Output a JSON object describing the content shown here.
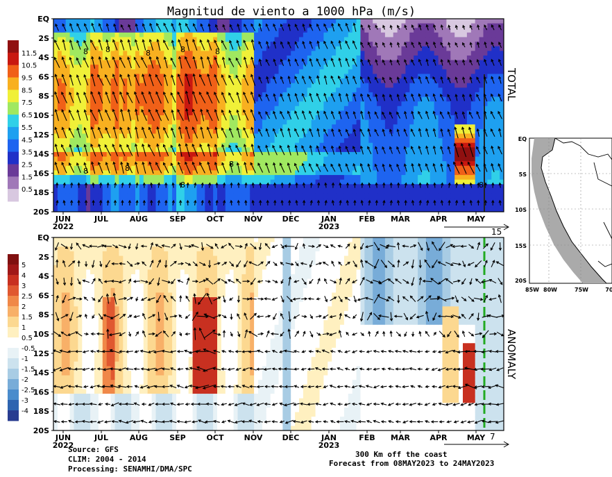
{
  "title": "Magnitud de viento a 1000 hPa (m/s)",
  "chart_data": [
    {
      "panel": "TOTAL",
      "type": "heatmap",
      "side_label": "TOTAL",
      "x_ticks": [
        "JUN",
        "JUL",
        "AUG",
        "SEP",
        "OCT",
        "NOV",
        "DEC",
        "JAN",
        "FEB",
        "MAR",
        "APR",
        "MAY"
      ],
      "x_year_labels": [
        "2022",
        "2023"
      ],
      "y_ticks": [
        "EQ",
        "2S",
        "4S",
        "6S",
        "8S",
        "10S",
        "12S",
        "14S",
        "16S",
        "18S",
        "20S"
      ],
      "colorbar_labels": [
        "0.5",
        "1.5",
        "2.5",
        "3.5",
        "4.5",
        "5.5",
        "6.5",
        "7.5",
        "8.5",
        "9.5",
        "10.5",
        "11.5"
      ],
      "colorbar_colors": [
        "#d8c8e0",
        "#a078b8",
        "#6a3a98",
        "#2030c8",
        "#1e64f0",
        "#1ea0f0",
        "#30d0e8",
        "#a0e860",
        "#f0f038",
        "#f8b020",
        "#f06018",
        "#c81810",
        "#901010"
      ],
      "contour_label": "8",
      "forecast_days": "15"
    },
    {
      "panel": "ANOMALY",
      "type": "heatmap",
      "side_label": "ANOMALY",
      "x_ticks": [
        "JUN",
        "JUL",
        "AUG",
        "SEP",
        "OCT",
        "NOV",
        "DEC",
        "JAN",
        "FEB",
        "MAR",
        "APR",
        "MAY"
      ],
      "x_year_labels": [
        "2022",
        "2023"
      ],
      "y_ticks": [
        "EQ",
        "2S",
        "4S",
        "6S",
        "8S",
        "10S",
        "12S",
        "14S",
        "16S",
        "18S",
        "20S"
      ],
      "colorbar_labels": [
        "-4",
        "-3",
        "-2.5",
        "-2",
        "-1.5",
        "-1",
        "-0.5",
        "0.5",
        "1",
        "1.5",
        "2",
        "2.5",
        "3",
        "4",
        "5"
      ],
      "colorbar_colors": [
        "#283c90",
        "#2e64b0",
        "#4a8ccc",
        "#78acd8",
        "#a8cce4",
        "#cce2ee",
        "#e8f2f6",
        "#ffffff",
        "#fff0c0",
        "#fcd890",
        "#f8b068",
        "#f08848",
        "#e05830",
        "#c83020",
        "#a01818",
        "#801010"
      ],
      "forecast_days": "7"
    }
  ],
  "map": {
    "y_ticks": [
      "EQ",
      "5S",
      "10S",
      "15S",
      "20S"
    ],
    "x_ticks": [
      "85W",
      "80W",
      "75W",
      "70"
    ]
  },
  "footer": {
    "source": "Source: GFS",
    "clim": "CLIM: 2004 - 2014",
    "processing": "Processing: SENAMHI/DMA/SPC",
    "region": "300 Km off the coast",
    "forecast": "Forecast from 08MAY2023 to 24MAY2023"
  }
}
